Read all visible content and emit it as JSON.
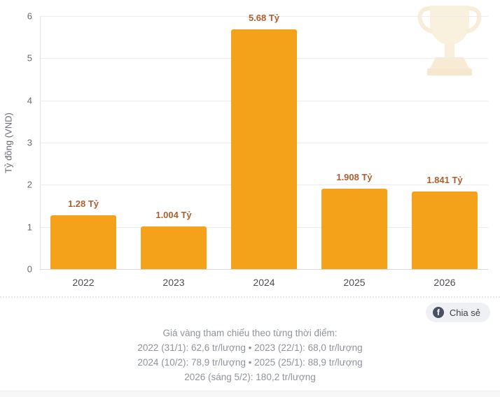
{
  "chart_data": {
    "type": "bar",
    "categories": [
      "2022",
      "2023",
      "2024",
      "2025",
      "2026"
    ],
    "values": [
      1.28,
      1.004,
      5.68,
      1.908,
      1.841
    ],
    "bar_labels": [
      "1.28 Tỷ",
      "1.004 Tỷ",
      "5.68 Tỷ",
      "1.908 Tỷ",
      "1.841 Tỷ"
    ],
    "title": "",
    "xlabel": "",
    "ylabel": "Tỷ đồng (VND)",
    "ylim": [
      0,
      6
    ],
    "yticks": [
      0,
      1,
      2,
      3,
      4,
      5,
      6
    ],
    "grid": true,
    "legend": false,
    "bar_color": "#F5A21B",
    "value_label_color": "#AC5F2D"
  },
  "share": {
    "label": "Chia sẻ",
    "icon": "facebook-icon",
    "icon_glyph": "f"
  },
  "footer": {
    "lines": [
      "Giá vàng tham chiếu theo từng thời điểm:",
      "2022 (31/1): 62,6 tr/lượng • 2023 (22/1): 68,0 tr/lượng",
      "2024 (10/2): 78,9 tr/lượng • 2025 (25/1): 88,9 tr/lượng",
      "2026 (sáng 5/2): 180,2 tr/lượng"
    ]
  },
  "watermark": {
    "icon": "trophy-icon"
  }
}
